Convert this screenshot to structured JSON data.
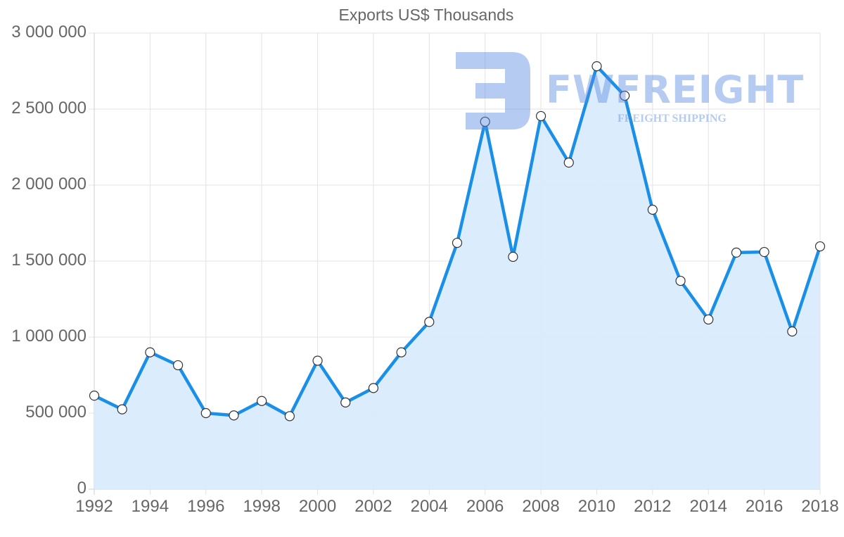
{
  "chart_data": {
    "type": "area",
    "title": "Exports US$ Thousands",
    "xlabel": "",
    "ylabel": "",
    "ylim": [
      0,
      3000000
    ],
    "grid": true,
    "legend": null,
    "x": [
      1992,
      1993,
      1994,
      1995,
      1996,
      1997,
      1998,
      1999,
      2000,
      2001,
      2002,
      2003,
      2004,
      2005,
      2006,
      2007,
      2008,
      2009,
      2010,
      2011,
      2012,
      2013,
      2014,
      2015,
      2016,
      2017,
      2018
    ],
    "series": [
      {
        "name": "Exports US$ Thousands",
        "color": "#1a8fe8",
        "fill": "#d9ecfd",
        "values": [
          615000,
          525000,
          900000,
          815000,
          500000,
          485000,
          580000,
          480000,
          845000,
          570000,
          665000,
          900000,
          1100000,
          1620000,
          2417000,
          1528000,
          2454000,
          2148000,
          2782000,
          2588000,
          1838000,
          1370000,
          1116000,
          1556000,
          1560000,
          1037000,
          1597000
        ]
      }
    ],
    "y_ticks": [
      "0",
      "500 000",
      "1 000 000",
      "1 500 000",
      "2 000 000",
      "2 500 000",
      "3 000 000"
    ],
    "y_tick_values": [
      0,
      500000,
      1000000,
      1500000,
      2000000,
      2500000,
      3000000
    ],
    "x_ticks": [
      "1992",
      "1994",
      "1996",
      "1998",
      "2000",
      "2002",
      "2004",
      "2006",
      "2008",
      "2010",
      "2012",
      "2014",
      "2016",
      "2018"
    ]
  },
  "watermark": {
    "brand": "FWFREIGHT",
    "tagline": "FREIGHT SHIPPING",
    "color": "#5a8ce1"
  }
}
